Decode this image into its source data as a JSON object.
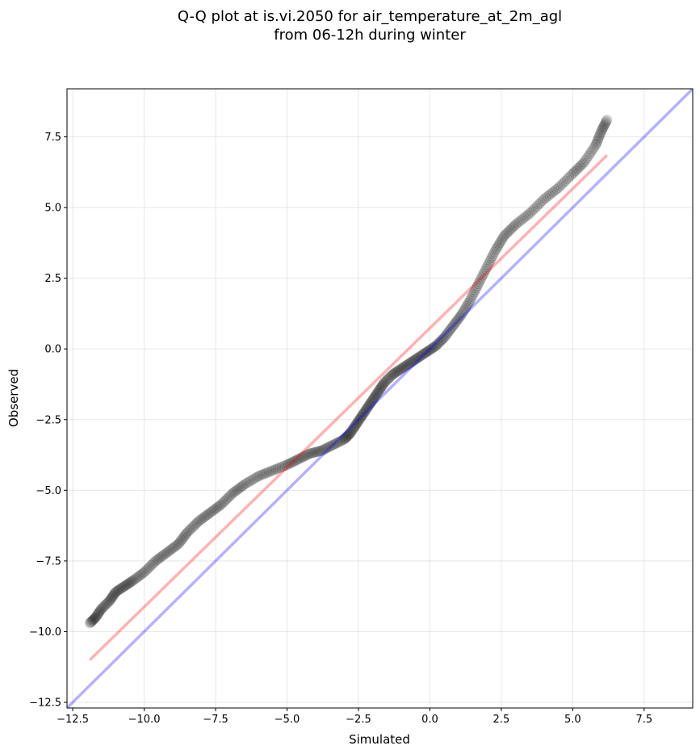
{
  "chart_data": {
    "type": "scatter",
    "title": "Q-Q plot at is.vi.2050 for air_temperature_at_2m_agl\nfrom 06-12h during winter",
    "title_lines": [
      "Q-Q plot at is.vi.2050 for air_temperature_at_2m_agl",
      "from 06-12h during winter"
    ],
    "xlabel": "Simulated",
    "ylabel": "Observed",
    "xlim": [
      -12.7,
      9.2
    ],
    "ylim": [
      -12.7,
      9.2
    ],
    "xticks": [
      -12.5,
      -10.0,
      -7.5,
      -5.0,
      -2.5,
      0.0,
      2.5,
      5.0,
      7.5
    ],
    "yticks": [
      -12.5,
      -10.0,
      -7.5,
      -5.0,
      -2.5,
      0.0,
      2.5,
      5.0,
      7.5
    ],
    "xtick_labels": [
      "−12.5",
      "−10.0",
      "−7.5",
      "−5.0",
      "−2.5",
      "0.0",
      "2.5",
      "5.0",
      "7.5"
    ],
    "ytick_labels": [
      "−12.5",
      "−10.0",
      "−7.5",
      "−5.0",
      "−2.5",
      "0.0",
      "2.5",
      "5.0",
      "7.5"
    ],
    "grid": true,
    "series": [
      {
        "kind": "points",
        "color": "#000000",
        "quantile_curve": {
          "x": [
            -11.9,
            -11.7,
            -11.5,
            -11.2,
            -11.0,
            -10.7,
            -10.4,
            -10.0,
            -9.6,
            -9.2,
            -8.8,
            -8.5,
            -8.1,
            -7.7,
            -7.3,
            -6.9,
            -6.5,
            -6.0,
            -5.5,
            -5.0,
            -4.6,
            -4.2,
            -3.8,
            -3.4,
            -3.0,
            -2.8,
            -2.6,
            -2.4,
            -2.2,
            -2.0,
            -1.8,
            -1.6,
            -1.3,
            -1.0,
            -0.7,
            -0.4,
            -0.1,
            0.2,
            0.5,
            0.8,
            1.1,
            1.4,
            1.7,
            2.0,
            2.3,
            2.6,
            3.0,
            3.5,
            4.0,
            4.5,
            5.0,
            5.4,
            5.8,
            6.0,
            6.2
          ],
          "y": [
            -9.7,
            -9.5,
            -9.2,
            -8.9,
            -8.6,
            -8.4,
            -8.2,
            -7.9,
            -7.5,
            -7.2,
            -6.9,
            -6.5,
            -6.1,
            -5.8,
            -5.5,
            -5.1,
            -4.8,
            -4.5,
            -4.3,
            -4.1,
            -3.9,
            -3.7,
            -3.6,
            -3.4,
            -3.2,
            -3.0,
            -2.7,
            -2.4,
            -2.1,
            -1.8,
            -1.5,
            -1.2,
            -0.9,
            -0.7,
            -0.5,
            -0.3,
            -0.1,
            0.1,
            0.4,
            0.8,
            1.2,
            1.7,
            2.3,
            2.9,
            3.5,
            4.0,
            4.4,
            4.8,
            5.3,
            5.7,
            6.2,
            6.6,
            7.2,
            7.7,
            8.1
          ],
          "points_per_segment": 8
        }
      },
      {
        "kind": "line",
        "color": "#ff0000",
        "opacity": 0.3,
        "x": [
          -11.9,
          6.2
        ],
        "y": [
          -11.0,
          6.85
        ]
      },
      {
        "kind": "line",
        "color": "#0000ff",
        "opacity": 0.3,
        "x": [
          -12.7,
          9.2
        ],
        "y": [
          -12.7,
          9.2
        ]
      }
    ]
  }
}
